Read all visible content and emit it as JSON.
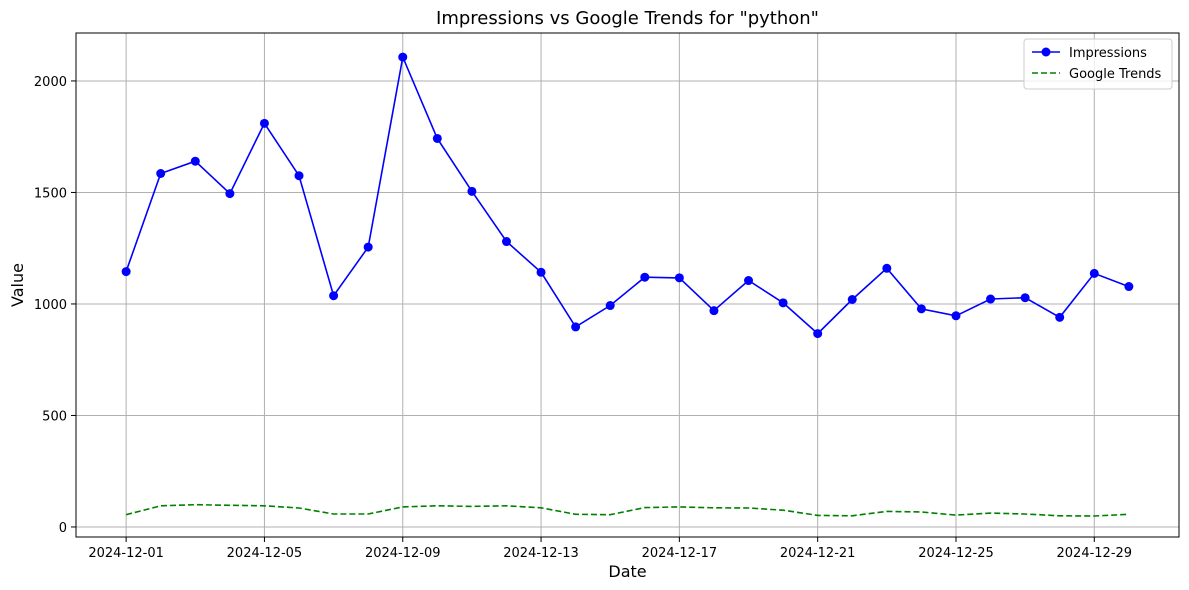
{
  "chart_data": {
    "type": "line",
    "title": "Impressions vs Google Trends for \"python\"",
    "xlabel": "Date",
    "ylabel": "Value",
    "x": [
      "2024-12-01",
      "2024-12-02",
      "2024-12-03",
      "2024-12-04",
      "2024-12-05",
      "2024-12-06",
      "2024-12-07",
      "2024-12-08",
      "2024-12-09",
      "2024-12-10",
      "2024-12-11",
      "2024-12-12",
      "2024-12-13",
      "2024-12-14",
      "2024-12-15",
      "2024-12-16",
      "2024-12-17",
      "2024-12-18",
      "2024-12-19",
      "2024-12-20",
      "2024-12-21",
      "2024-12-22",
      "2024-12-23",
      "2024-12-24",
      "2024-12-25",
      "2024-12-26",
      "2024-12-27",
      "2024-12-28",
      "2024-12-29",
      "2024-12-30"
    ],
    "x_ticks": [
      "2024-12-01",
      "2024-12-05",
      "2024-12-09",
      "2024-12-13",
      "2024-12-17",
      "2024-12-21",
      "2024-12-25",
      "2024-12-29"
    ],
    "y_ticks": [
      0,
      500,
      1000,
      1500,
      2000
    ],
    "ylim": [
      -45,
      2215
    ],
    "grid": true,
    "legend_position": "top-right",
    "series": [
      {
        "name": "Impressions",
        "color": "#0000ff",
        "style": "solid",
        "marker": "circle",
        "values": [
          1145,
          1585,
          1640,
          1495,
          1810,
          1575,
          1037,
          1255,
          2107,
          1742,
          1505,
          1280,
          1142,
          897,
          993,
          1120,
          1117,
          970,
          1105,
          1005,
          867,
          1020,
          1160,
          978,
          947,
          1022,
          1028,
          940,
          1137,
          1078
        ]
      },
      {
        "name": "Google Trends",
        "color": "#008000",
        "style": "dashed",
        "marker": "none",
        "values": [
          55,
          95,
          100,
          97,
          95,
          85,
          58,
          58,
          90,
          95,
          92,
          95,
          86,
          57,
          55,
          87,
          90,
          86,
          85,
          75,
          52,
          50,
          70,
          67,
          53,
          62,
          58,
          50,
          49,
          57
        ]
      }
    ]
  }
}
